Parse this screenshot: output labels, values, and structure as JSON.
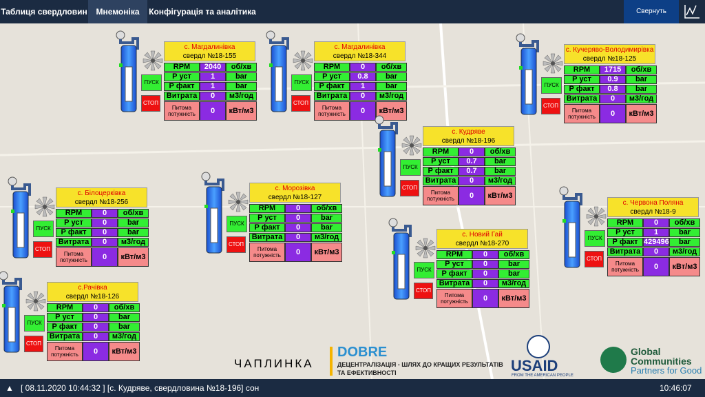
{
  "tabs": [
    "Таблиця свердловин",
    "Мнемоніка",
    "Конфігурація та аналітика"
  ],
  "collapse_button": "Свернуть",
  "row_labels": [
    "RPM",
    "Р уст",
    "Р факт",
    "Витрата",
    "Питома потужність"
  ],
  "units": [
    "об/хв",
    "bar",
    "bar",
    "м3/год",
    "кВт/м3"
  ],
  "start_button": "ПУСК",
  "stop_button": "СТОП",
  "wells": [
    {
      "village": "с. Магдалинівка",
      "well": "свердл №18-155",
      "values": [
        2040,
        1,
        1,
        0,
        0
      ]
    },
    {
      "village": "с. Магдалинівка",
      "well": "свердл №18-344",
      "values": [
        0,
        0.8,
        1,
        0,
        0
      ]
    },
    {
      "village": "с. Кучеряво-Володимирівка",
      "well": "свердл №18-125",
      "values": [
        1715,
        0.9,
        0.8,
        0,
        0
      ]
    },
    {
      "village": "с. Кудряве",
      "well": "свердл №18-196",
      "values": [
        0,
        0.7,
        0.7,
        0,
        0
      ]
    },
    {
      "village": "с. Білоцерківка",
      "well": "свердл №18-256",
      "values": [
        0,
        0,
        0,
        0,
        0
      ]
    },
    {
      "village": "с. Морозівка",
      "well": "свердл №18-127",
      "values": [
        0,
        0,
        0,
        0,
        0
      ]
    },
    {
      "village": "с. Новий Гай",
      "well": "свердл №18-270",
      "values": [
        0,
        0,
        0,
        0,
        0
      ]
    },
    {
      "village": "с. Червона Поляна",
      "well": "свердл №18-9",
      "values": [
        0,
        1,
        429496,
        0,
        0
      ]
    },
    {
      "village": "с.Рачівка",
      "well": "свердл №18-126",
      "values": [
        0,
        0,
        0,
        0,
        0
      ]
    }
  ],
  "logos": {
    "chaplynka": "ЧАПЛИНКА",
    "dobre": "DOBRE",
    "dobre_line1": "ДЕЦЕНТРАЛІЗАЦІЯ - ШЛЯХ ДО КРАЩИХ РЕЗУЛЬТАТІВ",
    "dobre_line2": "ТА ЕФЕКТИВНОСТІ",
    "usaid": "USAID",
    "usaid_sub": "FROM THE AMERICAN PEOPLE",
    "gc1": "Global",
    "gc2": "Communities",
    "gc3": "Partners for Good"
  },
  "status": {
    "message": "[ 08.11.2020 10:44:32 ] [с. Кудряве, свердловина №18-196] сон",
    "time": "10:46:07"
  }
}
